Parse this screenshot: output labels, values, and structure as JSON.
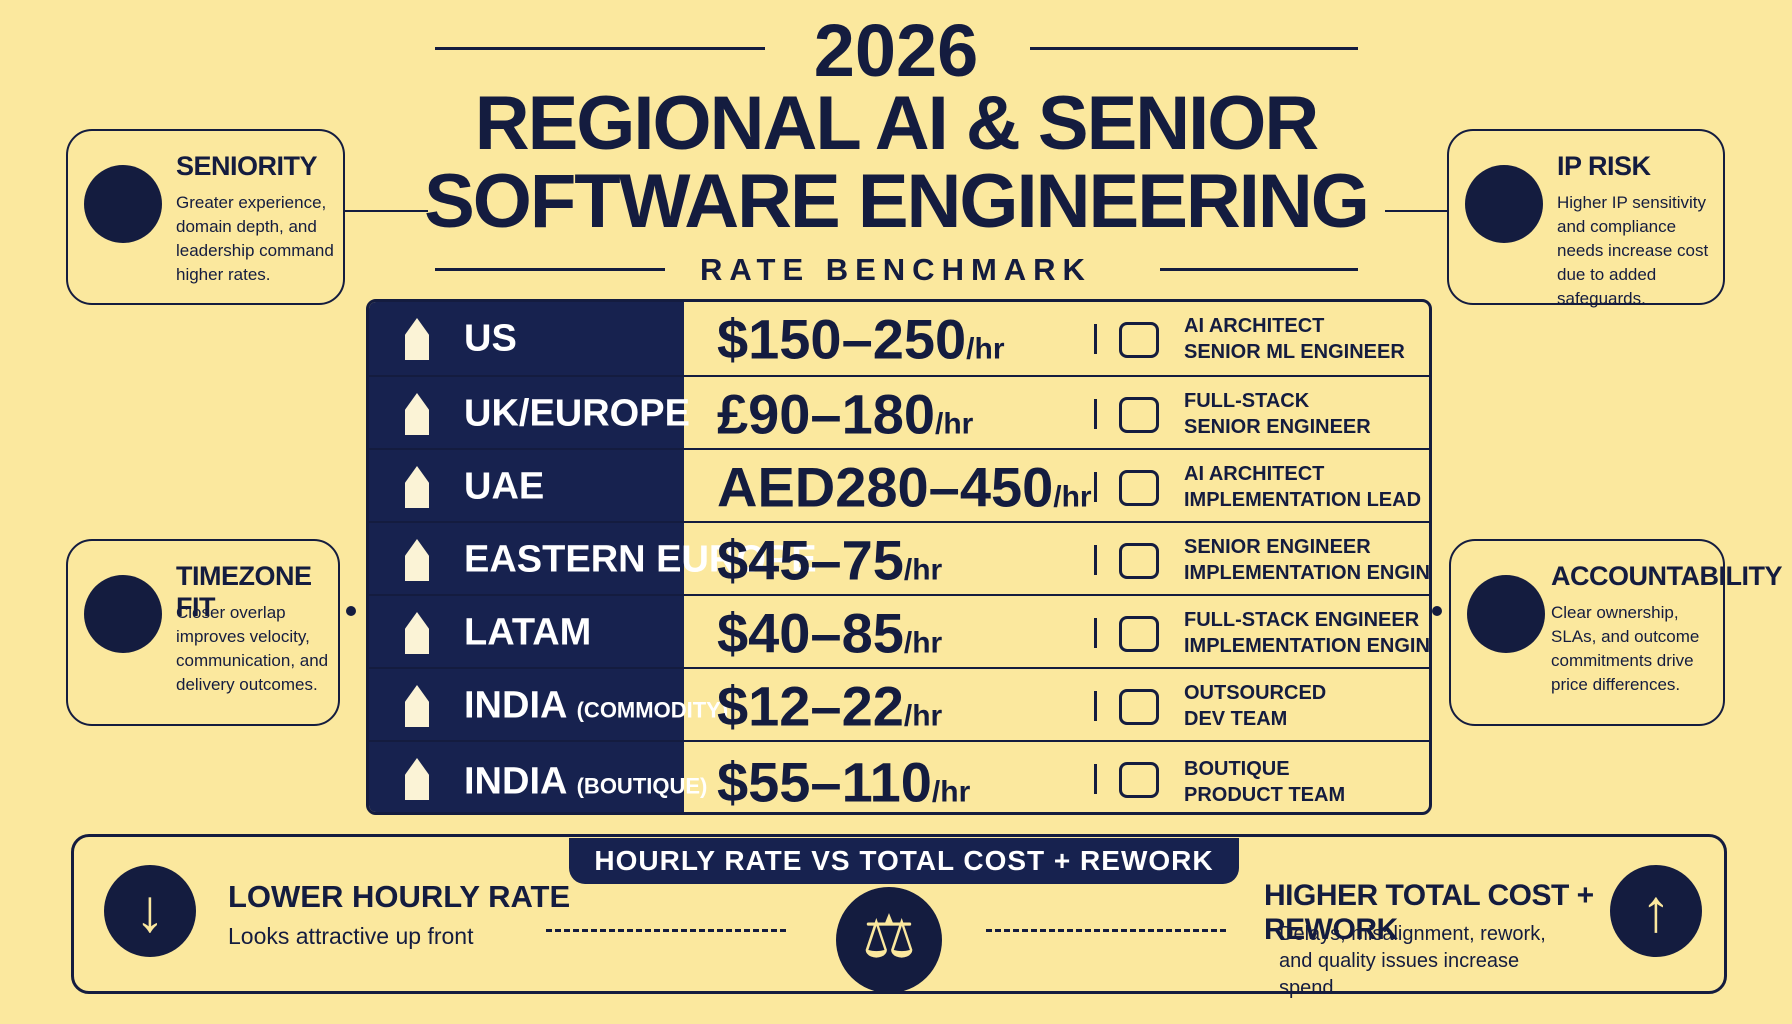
{
  "header": {
    "year": "2026",
    "title_line1": "REGIONAL AI & SENIOR",
    "title_line2": "SOFTWARE ENGINEERING",
    "subtitle": "RATE BENCHMARK"
  },
  "side_cards": [
    {
      "title": "SENIORITY",
      "text": "Greater experience, domain depth, and leadership command higher rates."
    },
    {
      "title": "TIMEZONE FIT",
      "text": "Closer overlap improves velocity, communication, and delivery outcomes."
    },
    {
      "title": "IP RISK",
      "text": "Higher IP sensitivity and compliance needs increase cost due to added safeguards."
    },
    {
      "title": "ACCOUNTABILITY",
      "text": "Clear ownership, SLAs, and outcome commitments drive price differences."
    }
  ],
  "table": {
    "rows": [
      {
        "region": "US",
        "rate": "$150–250",
        "unit": "/hr",
        "roles": [
          "AI ARCHITECT",
          "SENIOR ML ENGINEER"
        ]
      },
      {
        "region": "UK/EUROPE",
        "rate": "£90–180",
        "unit": "/hr",
        "roles": [
          "FULL-STACK",
          "SENIOR ENGINEER"
        ]
      },
      {
        "region": "UAE",
        "rate": "AED280–450",
        "unit": "/hr",
        "roles": [
          "AI ARCHITECT",
          "IMPLEMENTATION LEAD"
        ]
      },
      {
        "region": "EASTERN EUROPE",
        "rate": "$45–75",
        "unit": "/hr",
        "roles": [
          "SENIOR ENGINEER",
          "IMPLEMENTATION ENGINEER"
        ]
      },
      {
        "region": "LATAM",
        "rate": "$40–85",
        "unit": "/hr",
        "roles": [
          "FULL-STACK ENGINEER",
          "IMPLEMENTATION ENGINEER"
        ]
      },
      {
        "region": "INDIA",
        "qualifier": "(COMMODITY)",
        "rate": "$12–22",
        "unit": "/hr",
        "roles": [
          "OUTSOURCED",
          "DEV TEAM"
        ]
      },
      {
        "region": "INDIA",
        "qualifier": "(BOUTIQUE)",
        "rate": "$55–110",
        "unit": "/hr",
        "roles": [
          "BOUTIQUE",
          "PRODUCT TEAM"
        ]
      }
    ]
  },
  "footer": {
    "banner": "HOURLY RATE VS TOTAL COST + REWORK",
    "left": {
      "title": "LOWER HOURLY RATE",
      "text": "Looks attractive up front"
    },
    "right": {
      "title": "HIGHER TOTAL COST + REWORK",
      "text": "Delays, misalignment, rework, and quality issues increase spend"
    }
  }
}
